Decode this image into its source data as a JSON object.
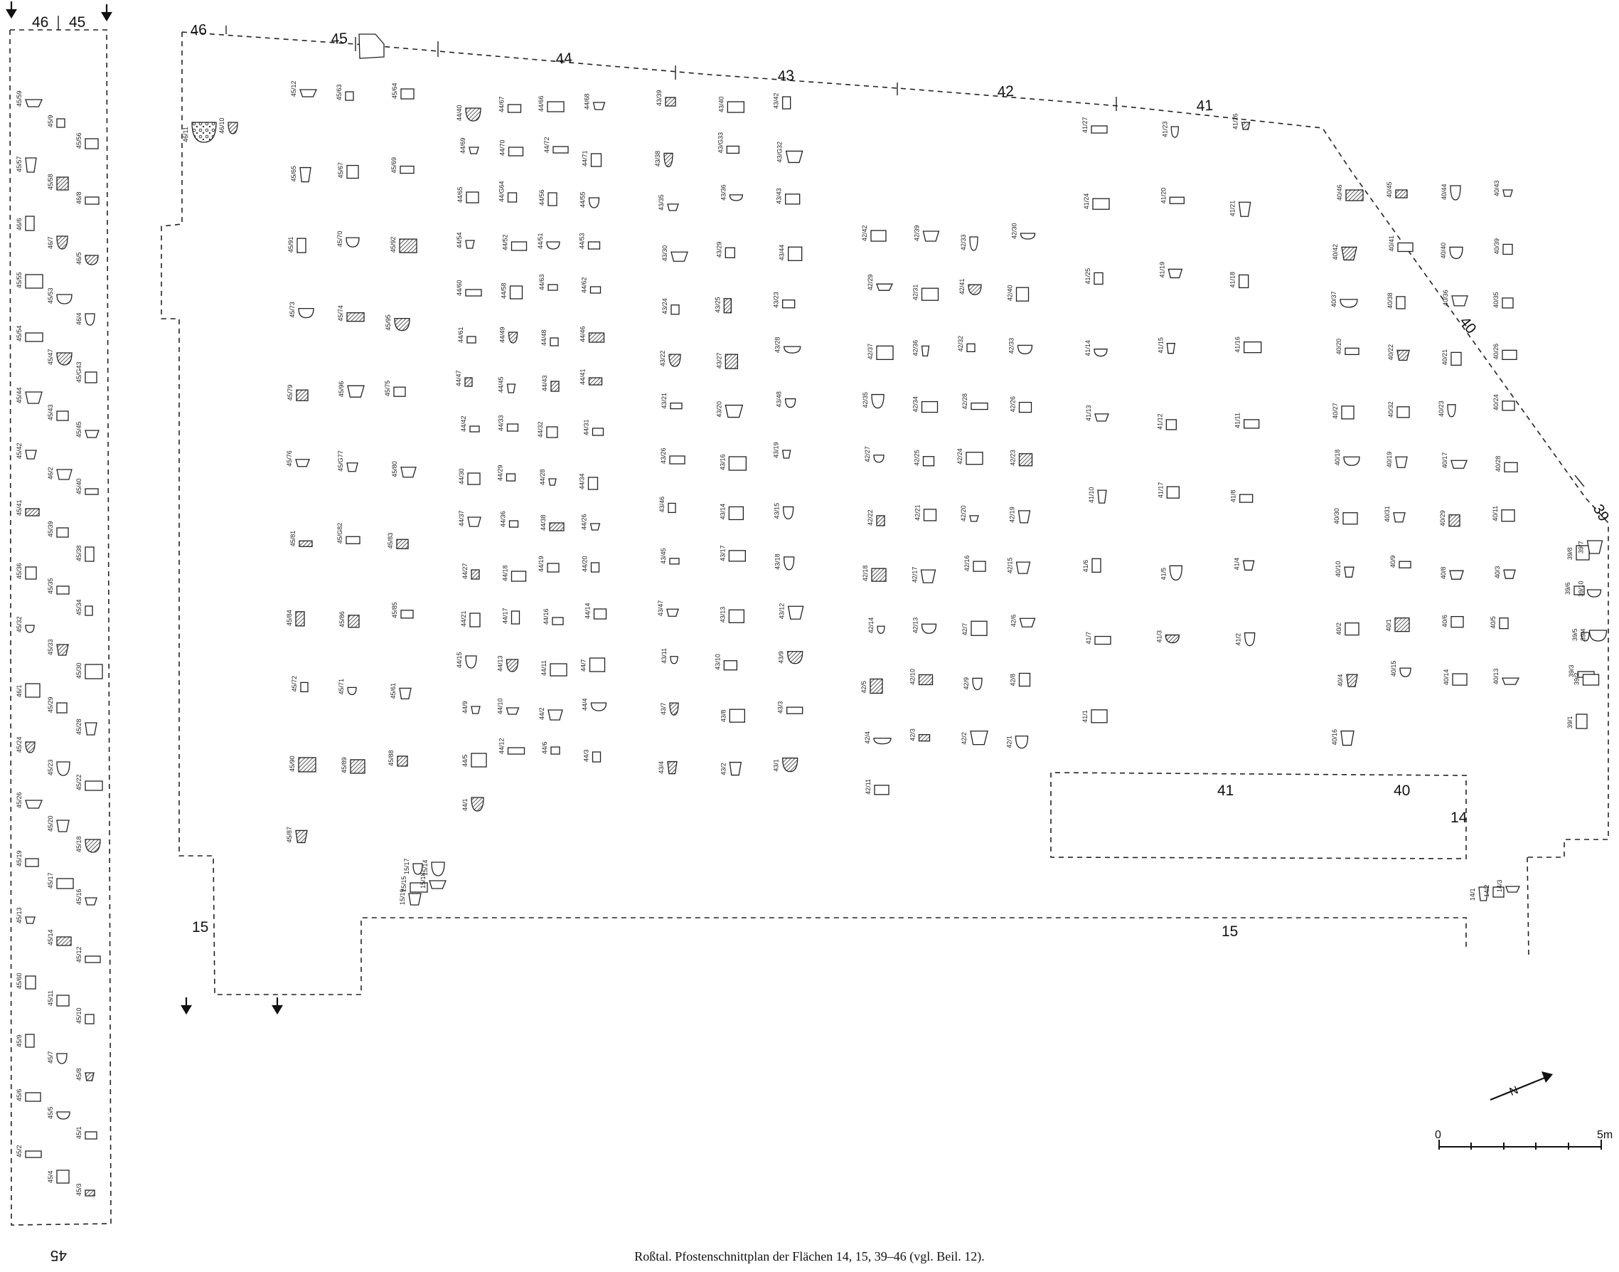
{
  "caption": "Roßtal. Pfostenschnittplan der Flächen 14, 15, 39–46 (vgl. Beil. 12).",
  "north_label": "N",
  "scale": {
    "start_label": "0",
    "end_label": "5m"
  },
  "strip": {
    "header_left": "46",
    "header_right": "45",
    "footer": "45",
    "features": [
      {
        "label": "45/59",
        "type": "plain"
      },
      {
        "label": "45/9",
        "type": "plain"
      },
      {
        "label": "45/56",
        "type": "plain"
      },
      {
        "label": "45/57",
        "type": "plain"
      },
      {
        "label": "45/58",
        "type": "hatch"
      },
      {
        "label": "46/8",
        "type": "plain"
      },
      {
        "label": "46/6",
        "type": "plain"
      },
      {
        "label": "46/7",
        "type": "hatch"
      },
      {
        "label": "46/5",
        "type": "hatch"
      },
      {
        "label": "45/55",
        "type": "plain"
      },
      {
        "label": "45/53",
        "type": "plain"
      },
      {
        "label": "46/4",
        "type": "plain"
      },
      {
        "label": "45/54",
        "type": "plain"
      },
      {
        "label": "45/47",
        "type": "hatch"
      },
      {
        "label": "45/G43",
        "type": "plain"
      },
      {
        "label": "45/44",
        "type": "plain"
      },
      {
        "label": "45/43",
        "type": "plain"
      },
      {
        "label": "45/45",
        "type": "plain"
      },
      {
        "label": "45/42",
        "type": "plain"
      },
      {
        "label": "46/2",
        "type": "plain"
      },
      {
        "label": "45/40",
        "type": "plain"
      },
      {
        "label": "45/41",
        "type": "hatch"
      },
      {
        "label": "45/39",
        "type": "plain"
      },
      {
        "label": "45/38",
        "type": "plain"
      },
      {
        "label": "45/36",
        "type": "plain"
      },
      {
        "label": "45/35",
        "type": "plain"
      },
      {
        "label": "45/34",
        "type": "plain"
      },
      {
        "label": "45/32",
        "type": "plain"
      },
      {
        "label": "45/33",
        "type": "hatch"
      },
      {
        "label": "45/30",
        "type": "plain"
      },
      {
        "label": "46/1",
        "type": "plain"
      },
      {
        "label": "45/29",
        "type": "plain"
      },
      {
        "label": "45/28",
        "type": "plain"
      },
      {
        "label": "45/24",
        "type": "hatch"
      },
      {
        "label": "45/23",
        "type": "plain"
      },
      {
        "label": "45/22",
        "type": "plain"
      },
      {
        "label": "45/26",
        "type": "plain"
      },
      {
        "label": "45/20",
        "type": "plain"
      },
      {
        "label": "45/18",
        "type": "hatch"
      },
      {
        "label": "45/19",
        "type": "plain"
      },
      {
        "label": "45/17",
        "type": "plain"
      },
      {
        "label": "45/16",
        "type": "plain"
      },
      {
        "label": "45/13",
        "type": "plain"
      },
      {
        "label": "45/14",
        "type": "hatch"
      },
      {
        "label": "45/12",
        "type": "plain"
      },
      {
        "label": "45/60",
        "type": "plain"
      },
      {
        "label": "45/11",
        "type": "plain"
      },
      {
        "label": "45/10",
        "type": "plain"
      },
      {
        "label": "45/9",
        "type": "plain"
      },
      {
        "label": "45/7",
        "type": "plain"
      },
      {
        "label": "45/8",
        "type": "hatch"
      },
      {
        "label": "45/6",
        "type": "plain"
      },
      {
        "label": "45/5",
        "type": "plain"
      },
      {
        "label": "45/1",
        "type": "plain"
      },
      {
        "label": "45/2",
        "type": "plain"
      },
      {
        "label": "45/4",
        "type": "plain"
      },
      {
        "label": "45/3",
        "type": "hatch"
      }
    ]
  },
  "area_labels": [
    {
      "text": "46"
    },
    {
      "text": "45"
    },
    {
      "text": "44"
    },
    {
      "text": "43"
    },
    {
      "text": "42"
    },
    {
      "text": "41"
    },
    {
      "text": "40"
    },
    {
      "text": "39"
    },
    {
      "text": "41"
    },
    {
      "text": "40"
    },
    {
      "text": "14"
    },
    {
      "text": "15"
    },
    {
      "text": "15"
    }
  ],
  "features": [
    {
      "label": "45/12",
      "type": "plain"
    },
    {
      "label": "45/63",
      "type": "plain"
    },
    {
      "label": "45/64",
      "type": "plain"
    },
    {
      "label": "45/65",
      "type": "plain"
    },
    {
      "label": "45/67",
      "type": "plain"
    },
    {
      "label": "45/69",
      "type": "plain"
    },
    {
      "label": "45/91",
      "type": "plain"
    },
    {
      "label": "46/11",
      "type": "stone"
    },
    {
      "label": "45/70",
      "type": "plain"
    },
    {
      "label": "45/92",
      "type": "hatch"
    },
    {
      "label": "45/73",
      "type": "plain"
    },
    {
      "label": "46/10",
      "type": "hatch"
    },
    {
      "label": "45/74",
      "type": "hatch"
    },
    {
      "label": "45/95",
      "type": "hatch"
    },
    {
      "label": "45/79",
      "type": "hatch"
    },
    {
      "label": "45/96",
      "type": "plain"
    },
    {
      "label": "45/75",
      "type": "plain"
    },
    {
      "label": "45/76",
      "type": "plain"
    },
    {
      "label": "45/G77",
      "type": "plain"
    },
    {
      "label": "45/80",
      "type": "plain"
    },
    {
      "label": "45/81",
      "type": "hatch"
    },
    {
      "label": "45/G82",
      "type": "plain"
    },
    {
      "label": "45/83",
      "type": "hatch"
    },
    {
      "label": "45/84",
      "type": "hatch"
    },
    {
      "label": "45/86",
      "type": "hatch"
    },
    {
      "label": "45/85",
      "type": "plain"
    },
    {
      "label": "45/72",
      "type": "plain"
    },
    {
      "label": "45/71",
      "type": "plain"
    },
    {
      "label": "45/61",
      "type": "plain"
    },
    {
      "label": "45/90",
      "type": "hatch"
    },
    {
      "label": "45/89",
      "type": "hatch"
    },
    {
      "label": "45/88",
      "type": "hatch"
    },
    {
      "label": "45/87",
      "type": "hatch"
    },
    {
      "label": "15/17",
      "type": "plain"
    },
    {
      "label": "15/14",
      "type": "plain"
    },
    {
      "label": "15/15",
      "type": "plain"
    },
    {
      "label": "15/18",
      "type": "plain"
    },
    {
      "label": "15/19",
      "type": "plain"
    },
    {
      "label": "44/40",
      "type": "hatch"
    },
    {
      "label": "44/67",
      "type": "plain"
    },
    {
      "label": "44/66",
      "type": "plain"
    },
    {
      "label": "44/68",
      "type": "plain"
    },
    {
      "label": "44/69",
      "type": "plain"
    },
    {
      "label": "44/70",
      "type": "plain"
    },
    {
      "label": "44/72",
      "type": "plain"
    },
    {
      "label": "44/71",
      "type": "plain"
    },
    {
      "label": "44/65",
      "type": "plain"
    },
    {
      "label": "44/G64",
      "type": "plain"
    },
    {
      "label": "44/56",
      "type": "plain"
    },
    {
      "label": "44/55",
      "type": "plain"
    },
    {
      "label": "44/54",
      "type": "plain"
    },
    {
      "label": "44/52",
      "type": "plain"
    },
    {
      "label": "44/51",
      "type": "plain"
    },
    {
      "label": "44/53",
      "type": "plain"
    },
    {
      "label": "44/60",
      "type": "plain"
    },
    {
      "label": "44/58",
      "type": "plain"
    },
    {
      "label": "44/63",
      "type": "plain"
    },
    {
      "label": "44/62",
      "type": "plain"
    },
    {
      "label": "44/61",
      "type": "plain"
    },
    {
      "label": "44/49",
      "type": "hatch"
    },
    {
      "label": "44/48",
      "type": "plain"
    },
    {
      "label": "44/46",
      "type": "hatch"
    },
    {
      "label": "44/47",
      "type": "hatch"
    },
    {
      "label": "44/45",
      "type": "plain"
    },
    {
      "label": "44/43",
      "type": "hatch"
    },
    {
      "label": "44/41",
      "type": "hatch"
    },
    {
      "label": "44/42",
      "type": "plain"
    },
    {
      "label": "44/33",
      "type": "plain"
    },
    {
      "label": "44/32",
      "type": "plain"
    },
    {
      "label": "44/31",
      "type": "plain"
    },
    {
      "label": "44/30",
      "type": "plain"
    },
    {
      "label": "44/29",
      "type": "plain"
    },
    {
      "label": "44/28",
      "type": "plain"
    },
    {
      "label": "44/34",
      "type": "plain"
    },
    {
      "label": "44/37",
      "type": "plain"
    },
    {
      "label": "44/36",
      "type": "plain"
    },
    {
      "label": "44/38",
      "type": "hatch"
    },
    {
      "label": "44/26",
      "type": "plain"
    },
    {
      "label": "44/27",
      "type": "hatch"
    },
    {
      "label": "44/18",
      "type": "plain"
    },
    {
      "label": "44/19",
      "type": "plain"
    },
    {
      "label": "44/20",
      "type": "plain"
    },
    {
      "label": "44/21",
      "type": "plain"
    },
    {
      "label": "44/17",
      "type": "plain"
    },
    {
      "label": "44/16",
      "type": "plain"
    },
    {
      "label": "44/14",
      "type": "plain"
    },
    {
      "label": "44/15",
      "type": "plain"
    },
    {
      "label": "44/13",
      "type": "hatch"
    },
    {
      "label": "44/11",
      "type": "plain"
    },
    {
      "label": "44/7",
      "type": "plain"
    },
    {
      "label": "44/9",
      "type": "plain"
    },
    {
      "label": "44/10",
      "type": "plain"
    },
    {
      "label": "44/2",
      "type": "plain"
    },
    {
      "label": "44/4",
      "type": "plain"
    },
    {
      "label": "44/5",
      "type": "plain"
    },
    {
      "label": "44/12",
      "type": "plain"
    },
    {
      "label": "44/6",
      "type": "plain"
    },
    {
      "label": "44/3",
      "type": "plain"
    },
    {
      "label": "44/1",
      "type": "hatch"
    },
    {
      "label": "43/39",
      "type": "hatch"
    },
    {
      "label": "43/40",
      "type": "plain"
    },
    {
      "label": "43/42",
      "type": "plain"
    },
    {
      "label": "43/38",
      "type": "hatch"
    },
    {
      "label": "43/G33",
      "type": "plain"
    },
    {
      "label": "43/G32",
      "type": "plain"
    },
    {
      "label": "43/35",
      "type": "plain"
    },
    {
      "label": "43/36",
      "type": "plain"
    },
    {
      "label": "43/43",
      "type": "plain"
    },
    {
      "label": "43/30",
      "type": "plain"
    },
    {
      "label": "43/29",
      "type": "plain"
    },
    {
      "label": "43/44",
      "type": "plain"
    },
    {
      "label": "43/24",
      "type": "plain"
    },
    {
      "label": "43/25",
      "type": "hatch"
    },
    {
      "label": "43/23",
      "type": "plain"
    },
    {
      "label": "43/22",
      "type": "hatch"
    },
    {
      "label": "43/27",
      "type": "hatch"
    },
    {
      "label": "43/28",
      "type": "plain"
    },
    {
      "label": "43/21",
      "type": "plain"
    },
    {
      "label": "43/20",
      "type": "plain"
    },
    {
      "label": "43/48",
      "type": "plain"
    },
    {
      "label": "43/26",
      "type": "plain"
    },
    {
      "label": "43/16",
      "type": "plain"
    },
    {
      "label": "43/19",
      "type": "plain"
    },
    {
      "label": "43/46",
      "type": "plain"
    },
    {
      "label": "43/14",
      "type": "plain"
    },
    {
      "label": "43/15",
      "type": "plain"
    },
    {
      "label": "43/45",
      "type": "plain"
    },
    {
      "label": "43/17",
      "type": "plain"
    },
    {
      "label": "43/18",
      "type": "plain"
    },
    {
      "label": "43/47",
      "type": "plain"
    },
    {
      "label": "43/13",
      "type": "plain"
    },
    {
      "label": "43/12",
      "type": "plain"
    },
    {
      "label": "43/11",
      "type": "plain"
    },
    {
      "label": "43/10",
      "type": "plain"
    },
    {
      "label": "43/9",
      "type": "hatch"
    },
    {
      "label": "43/7",
      "type": "hatch"
    },
    {
      "label": "43/8",
      "type": "plain"
    },
    {
      "label": "43/3",
      "type": "plain"
    },
    {
      "label": "43/4",
      "type": "hatch"
    },
    {
      "label": "43/2",
      "type": "plain"
    },
    {
      "label": "43/1",
      "type": "hatch"
    },
    {
      "label": "42/42",
      "type": "plain"
    },
    {
      "label": "42/39",
      "type": "plain"
    },
    {
      "label": "42/33",
      "type": "plain"
    },
    {
      "label": "42/30",
      "type": "plain"
    },
    {
      "label": "42/29",
      "type": "plain"
    },
    {
      "label": "42/31",
      "type": "plain"
    },
    {
      "label": "42/41",
      "type": "hatch"
    },
    {
      "label": "42/40",
      "type": "plain"
    },
    {
      "label": "42/37",
      "type": "plain"
    },
    {
      "label": "42/36",
      "type": "plain"
    },
    {
      "label": "42/32",
      "type": "plain"
    },
    {
      "label": "42/33",
      "type": "plain"
    },
    {
      "label": "42/35",
      "type": "plain"
    },
    {
      "label": "42/34",
      "type": "plain"
    },
    {
      "label": "42/28",
      "type": "plain"
    },
    {
      "label": "42/26",
      "type": "plain"
    },
    {
      "label": "42/27",
      "type": "plain"
    },
    {
      "label": "42/25",
      "type": "plain"
    },
    {
      "label": "42/24",
      "type": "plain"
    },
    {
      "label": "42/23",
      "type": "hatch"
    },
    {
      "label": "42/22",
      "type": "hatch"
    },
    {
      "label": "42/21",
      "type": "plain"
    },
    {
      "label": "42/20",
      "type": "plain"
    },
    {
      "label": "42/19",
      "type": "plain"
    },
    {
      "label": "42/18",
      "type": "hatch"
    },
    {
      "label": "42/17",
      "type": "plain"
    },
    {
      "label": "42/16",
      "type": "plain"
    },
    {
      "label": "42/15",
      "type": "plain"
    },
    {
      "label": "42/14",
      "type": "plain"
    },
    {
      "label": "42/13",
      "type": "plain"
    },
    {
      "label": "42/7",
      "type": "plain"
    },
    {
      "label": "42/6",
      "type": "plain"
    },
    {
      "label": "42/5",
      "type": "hatch"
    },
    {
      "label": "42/10",
      "type": "hatch"
    },
    {
      "label": "42/9",
      "type": "plain"
    },
    {
      "label": "42/8",
      "type": "plain"
    },
    {
      "label": "42/4",
      "type": "plain"
    },
    {
      "label": "42/3",
      "type": "hatch"
    },
    {
      "label": "42/2",
      "type": "plain"
    },
    {
      "label": "42/1",
      "type": "plain"
    },
    {
      "label": "42/11",
      "type": "plain"
    },
    {
      "label": "41/27",
      "type": "plain"
    },
    {
      "label": "41/23",
      "type": "plain"
    },
    {
      "label": "41/26",
      "type": "hatch"
    },
    {
      "label": "41/24",
      "type": "plain"
    },
    {
      "label": "41/20",
      "type": "plain"
    },
    {
      "label": "41/21",
      "type": "plain"
    },
    {
      "label": "41/25",
      "type": "plain"
    },
    {
      "label": "41/19",
      "type": "plain"
    },
    {
      "label": "41/18",
      "type": "plain"
    },
    {
      "label": "41/14",
      "type": "plain"
    },
    {
      "label": "41/15",
      "type": "plain"
    },
    {
      "label": "41/16",
      "type": "plain"
    },
    {
      "label": "41/13",
      "type": "plain"
    },
    {
      "label": "41/12",
      "type": "plain"
    },
    {
      "label": "41/11",
      "type": "plain"
    },
    {
      "label": "41/10",
      "type": "plain"
    },
    {
      "label": "41/17",
      "type": "plain"
    },
    {
      "label": "41/8",
      "type": "plain"
    },
    {
      "label": "41/6",
      "type": "plain"
    },
    {
      "label": "41/5",
      "type": "plain"
    },
    {
      "label": "41/4",
      "type": "plain"
    },
    {
      "label": "41/7",
      "type": "plain"
    },
    {
      "label": "41/3",
      "type": "hatch"
    },
    {
      "label": "41/2",
      "type": "plain"
    },
    {
      "label": "41/1",
      "type": "plain"
    },
    {
      "label": "40/46",
      "type": "hatch"
    },
    {
      "label": "40/45",
      "type": "hatch"
    },
    {
      "label": "40/44",
      "type": "plain"
    },
    {
      "label": "40/43",
      "type": "plain"
    },
    {
      "label": "40/42",
      "type": "hatch"
    },
    {
      "label": "40/41",
      "type": "plain"
    },
    {
      "label": "40/40",
      "type": "plain"
    },
    {
      "label": "40/39",
      "type": "plain"
    },
    {
      "label": "40/37",
      "type": "plain"
    },
    {
      "label": "40/38",
      "type": "plain"
    },
    {
      "label": "40/36",
      "type": "plain"
    },
    {
      "label": "40/35",
      "type": "plain"
    },
    {
      "label": "40/20",
      "type": "plain"
    },
    {
      "label": "40/22",
      "type": "hatch"
    },
    {
      "label": "40/21",
      "type": "plain"
    },
    {
      "label": "40/26",
      "type": "plain"
    },
    {
      "label": "40/27",
      "type": "plain"
    },
    {
      "label": "40/32",
      "type": "plain"
    },
    {
      "label": "40/23",
      "type": "plain"
    },
    {
      "label": "40/24",
      "type": "plain"
    },
    {
      "label": "40/18",
      "type": "plain"
    },
    {
      "label": "40/19",
      "type": "plain"
    },
    {
      "label": "40/17",
      "type": "plain"
    },
    {
      "label": "40/28",
      "type": "plain"
    },
    {
      "label": "40/30",
      "type": "plain"
    },
    {
      "label": "40/31",
      "type": "plain"
    },
    {
      "label": "40/29",
      "type": "hatch"
    },
    {
      "label": "40/11",
      "type": "plain"
    },
    {
      "label": "40/10",
      "type": "plain"
    },
    {
      "label": "40/9",
      "type": "plain"
    },
    {
      "label": "40/8",
      "type": "plain"
    },
    {
      "label": "40/3",
      "type": "plain"
    },
    {
      "label": "40/2",
      "type": "plain"
    },
    {
      "label": "40/1",
      "type": "hatch"
    },
    {
      "label": "40/6",
      "type": "plain"
    },
    {
      "label": "40/5",
      "type": "plain"
    },
    {
      "label": "40/4",
      "type": "hatch"
    },
    {
      "label": "40/15",
      "type": "plain"
    },
    {
      "label": "40/14",
      "type": "plain"
    },
    {
      "label": "40/13",
      "type": "plain"
    },
    {
      "label": "40/16",
      "type": "plain"
    },
    {
      "label": "39/8",
      "type": "plain"
    },
    {
      "label": "39/7",
      "type": "plain"
    },
    {
      "label": "39/6",
      "type": "plain"
    },
    {
      "label": "39/10",
      "type": "plain"
    },
    {
      "label": "39/5",
      "type": "plain"
    },
    {
      "label": "39/4",
      "type": "plain"
    },
    {
      "label": "39/3",
      "type": "plain"
    },
    {
      "label": "39/2",
      "type": "plain"
    },
    {
      "label": "39/1",
      "type": "plain"
    },
    {
      "label": "14/1",
      "type": "plain"
    },
    {
      "label": "14/2",
      "type": "plain"
    },
    {
      "label": "14/3",
      "type": "plain"
    }
  ]
}
